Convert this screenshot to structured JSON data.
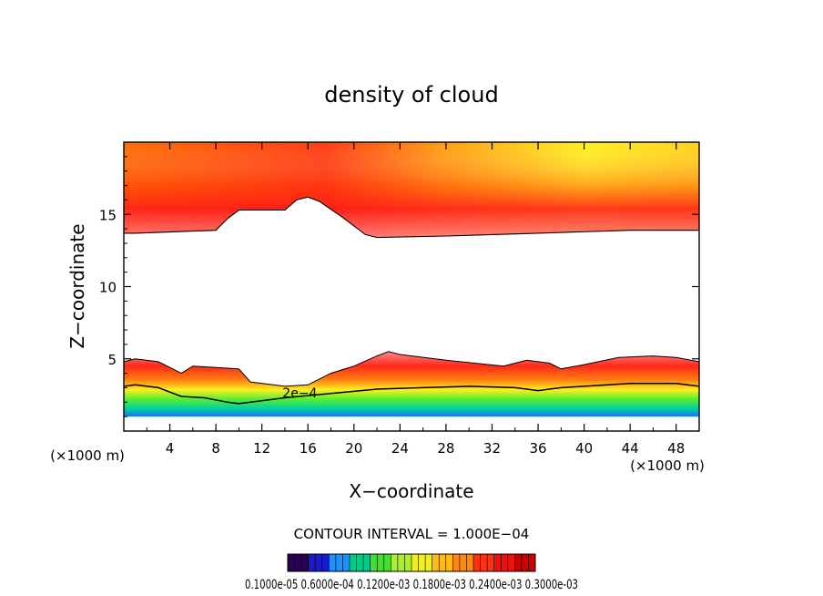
{
  "chart_data": {
    "type": "contour",
    "title": "density of cloud",
    "xlabel": "X−coordinate",
    "ylabel": "Z−coordinate",
    "x_unit_label": "(×1000 m)",
    "z_unit_label": "(×1000 m)",
    "xlim": [
      0,
      50
    ],
    "ylim": [
      0,
      20
    ],
    "x_ticks": [
      4,
      8,
      12,
      16,
      20,
      24,
      28,
      32,
      36,
      40,
      44,
      48
    ],
    "y_ticks": [
      5,
      10,
      15
    ],
    "contour_interval_text": "CONTOUR INTERVAL = 1.000E−04",
    "contour_label": "2e−4",
    "colorbar_labels_text": "0.1000e-05 0.6000e-04 0.1200e-03 0.1800e-03 0.2400e-03 0.3000e-03",
    "colorbar_colors": [
      "#2a0050",
      "#1a1acc",
      "#1e90ff",
      "#00cc88",
      "#44dd33",
      "#aaee33",
      "#eeee22",
      "#ffbb11",
      "#ff8811",
      "#ff3311",
      "#ee1111",
      "#cc0000"
    ],
    "upper_layer": {
      "top_z": 20,
      "bottom_x": [
        0,
        1,
        8,
        9,
        10,
        14,
        15,
        16,
        17,
        19,
        21,
        22,
        28,
        36,
        44,
        50
      ],
      "bottom_z": [
        13.7,
        13.7,
        13.9,
        14.7,
        15.3,
        15.3,
        16.0,
        16.2,
        15.9,
        14.8,
        13.6,
        13.4,
        13.5,
        13.7,
        13.9,
        13.9
      ]
    },
    "lower_layer": {
      "top_x": [
        0,
        1,
        3,
        5,
        6,
        8,
        10,
        11,
        13,
        14,
        16,
        18,
        20,
        22,
        23,
        24,
        28,
        33,
        35,
        37,
        38,
        40,
        43,
        46,
        48,
        50
      ],
      "top_z": [
        4.8,
        5.0,
        4.8,
        4.0,
        4.5,
        4.4,
        4.3,
        3.4,
        3.2,
        3.1,
        3.2,
        4.0,
        4.5,
        5.2,
        5.5,
        5.3,
        4.9,
        4.5,
        4.9,
        4.7,
        4.3,
        4.6,
        5.1,
        5.2,
        5.1,
        4.8
      ],
      "mid_x": [
        0,
        1,
        3,
        5,
        7,
        9,
        10,
        14,
        18,
        22,
        26,
        30,
        34,
        36,
        38,
        40,
        44,
        48,
        50
      ],
      "mid_z": [
        3.1,
        3.2,
        3.0,
        2.4,
        2.3,
        2.0,
        1.9,
        2.3,
        2.6,
        2.9,
        3.0,
        3.1,
        3.0,
        2.8,
        3.0,
        3.1,
        3.3,
        3.3,
        3.1
      ],
      "base_z": 1.0
    }
  }
}
